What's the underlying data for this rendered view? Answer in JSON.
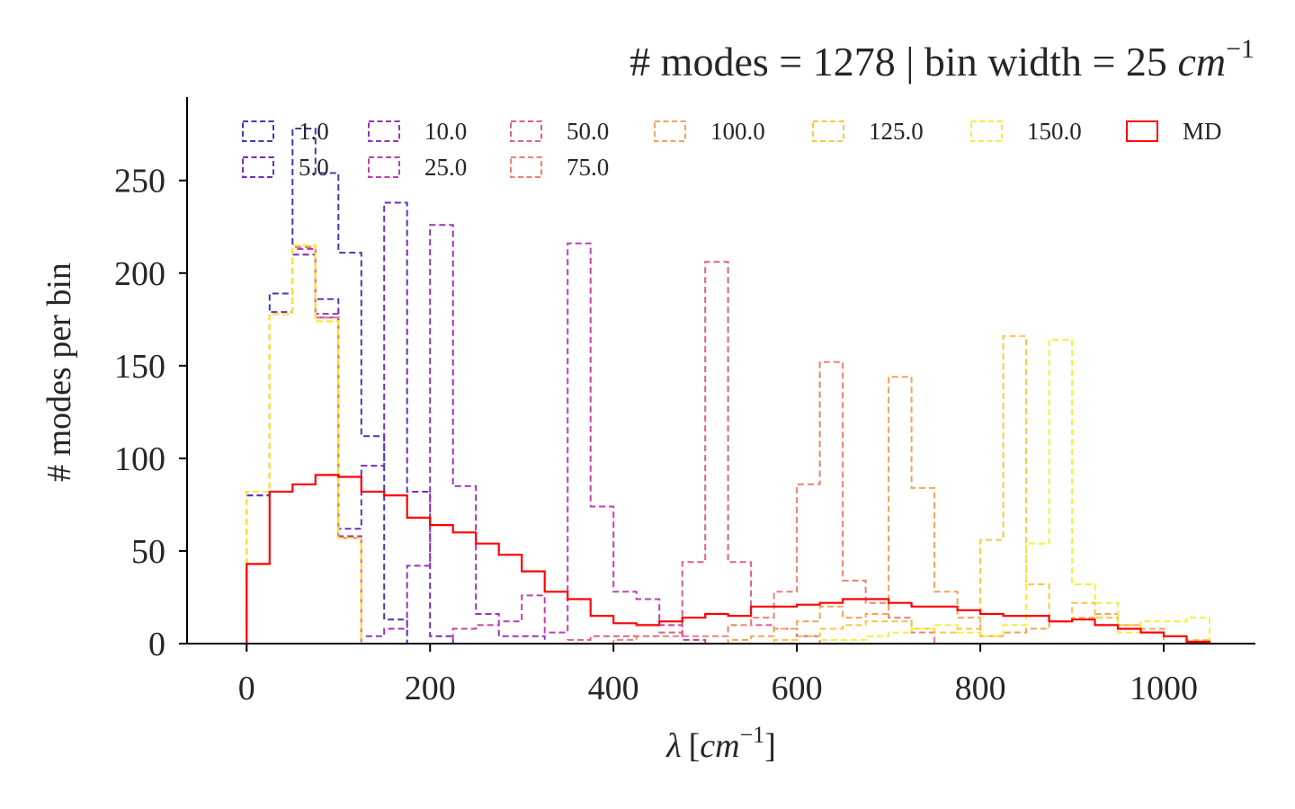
{
  "chart_data": {
    "type": "histogram-step",
    "title_text": "# modes = 1278 | bin width = 25 ",
    "title_unit": "cm",
    "title_exp": "−1",
    "xlabel_symbol": "λ",
    "xlabel_bracket_open": "[",
    "xlabel_unit": "cm",
    "xlabel_exp": "−1",
    "xlabel_bracket_close": "]",
    "ylabel": "# modes per bin",
    "xlim": [
      -65,
      1100
    ],
    "ylim": [
      0,
      295
    ],
    "xticks": [
      0,
      200,
      400,
      600,
      800,
      1000
    ],
    "xtick_labels": [
      "0",
      "200",
      "400",
      "600",
      "800",
      "1000"
    ],
    "yticks": [
      0,
      50,
      100,
      150,
      200,
      250
    ],
    "ytick_labels": [
      "0",
      "50",
      "100",
      "150",
      "200",
      "250"
    ],
    "legend_location": "top",
    "legend_columns": 7,
    "bin_width": 25,
    "bin_edges": [
      0,
      25,
      50,
      75,
      100,
      125,
      150,
      175,
      200,
      225,
      250,
      275,
      300,
      325,
      350,
      375,
      400,
      425,
      450,
      475,
      500,
      525,
      550,
      575,
      600,
      625,
      650,
      675,
      700,
      725,
      750,
      775,
      800,
      825,
      850,
      875,
      900,
      925,
      950,
      975,
      1000,
      1025,
      1050
    ],
    "series": [
      {
        "name": "1.0",
        "color": "#3b3cb4",
        "style": "dashed",
        "values": [
          80,
          189,
          278,
          254,
          211,
          112,
          13,
          0,
          0,
          0,
          0,
          0,
          0,
          0,
          0,
          0,
          0,
          0,
          0,
          0,
          0,
          0,
          0,
          0,
          0,
          0,
          0,
          0,
          0,
          0,
          0,
          0,
          0,
          0,
          0,
          0,
          0,
          0,
          0,
          0,
          0,
          0
        ]
      },
      {
        "name": "5.0",
        "color": "#6a2fc0",
        "style": "dashed",
        "values": [
          80,
          179,
          210,
          186,
          62,
          96,
          238,
          82,
          4,
          0,
          0,
          0,
          0,
          0,
          0,
          0,
          0,
          0,
          0,
          0,
          0,
          0,
          0,
          0,
          0,
          0,
          0,
          0,
          0,
          0,
          0,
          0,
          0,
          0,
          0,
          0,
          0,
          0,
          0,
          0,
          0,
          0
        ]
      },
      {
        "name": "10.0",
        "color": "#9a33b8",
        "style": "dashed",
        "values": [
          82,
          178,
          210,
          178,
          58,
          4,
          8,
          42,
          226,
          85,
          16,
          4,
          4,
          0,
          0,
          0,
          0,
          0,
          0,
          0,
          0,
          0,
          0,
          0,
          0,
          0,
          0,
          0,
          0,
          0,
          0,
          0,
          0,
          0,
          0,
          0,
          0,
          0,
          0,
          0,
          0,
          0
        ]
      },
      {
        "name": "25.0",
        "color": "#c13fae",
        "style": "dashed",
        "values": [
          82,
          178,
          213,
          176,
          57,
          0,
          0,
          0,
          0,
          8,
          10,
          12,
          26,
          6,
          216,
          74,
          28,
          24,
          10,
          2,
          0,
          0,
          0,
          0,
          0,
          0,
          0,
          0,
          0,
          0,
          0,
          0,
          0,
          0,
          0,
          0,
          0,
          0,
          0,
          0,
          0,
          0
        ]
      },
      {
        "name": "50.0",
        "color": "#dc5f8a",
        "style": "dashed",
        "values": [
          82,
          178,
          214,
          176,
          57,
          0,
          0,
          0,
          0,
          0,
          0,
          0,
          0,
          0,
          2,
          4,
          4,
          4,
          6,
          44,
          206,
          44,
          10,
          8,
          4,
          0,
          0,
          0,
          0,
          0,
          0,
          0,
          0,
          0,
          0,
          0,
          0,
          0,
          0,
          0,
          0,
          0
        ]
      },
      {
        "name": "75.0",
        "color": "#ec8070",
        "style": "dashed",
        "values": [
          82,
          178,
          214,
          176,
          57,
          0,
          0,
          0,
          0,
          0,
          0,
          0,
          0,
          0,
          0,
          0,
          2,
          4,
          4,
          4,
          4,
          10,
          14,
          28,
          86,
          152,
          34,
          22,
          14,
          6,
          0,
          0,
          0,
          0,
          0,
          0,
          0,
          0,
          0,
          0,
          0,
          0
        ]
      },
      {
        "name": "100.0",
        "color": "#f4a35a",
        "style": "dashed",
        "values": [
          82,
          178,
          215,
          174,
          57,
          0,
          0,
          0,
          0,
          0,
          0,
          0,
          0,
          0,
          0,
          0,
          0,
          0,
          0,
          0,
          0,
          2,
          4,
          8,
          12,
          20,
          14,
          16,
          144,
          84,
          28,
          14,
          4,
          6,
          8,
          12,
          14,
          16,
          10,
          8,
          0,
          0
        ]
      },
      {
        "name": "125.0",
        "color": "#f9c646",
        "style": "dashed",
        "values": [
          82,
          178,
          215,
          174,
          57,
          0,
          0,
          0,
          0,
          0,
          0,
          0,
          0,
          0,
          0,
          0,
          0,
          0,
          0,
          0,
          0,
          0,
          0,
          2,
          4,
          8,
          10,
          12,
          12,
          8,
          6,
          8,
          56,
          166,
          32,
          12,
          22,
          14,
          10,
          6,
          4,
          2
        ]
      },
      {
        "name": "150.0",
        "color": "#f4ee3c",
        "style": "dashed",
        "values": [
          82,
          178,
          215,
          174,
          57,
          0,
          0,
          0,
          0,
          0,
          0,
          0,
          0,
          0,
          0,
          0,
          0,
          0,
          0,
          0,
          0,
          0,
          0,
          0,
          0,
          2,
          2,
          4,
          6,
          8,
          10,
          6,
          4,
          10,
          54,
          164,
          32,
          22,
          6,
          12,
          12,
          14
        ]
      },
      {
        "name": "MD",
        "color": "#ff0000",
        "style": "solid",
        "values": [
          43,
          82,
          86,
          91,
          90,
          82,
          80,
          68,
          64,
          60,
          54,
          48,
          39,
          28,
          24,
          15,
          11,
          10,
          12,
          14,
          16,
          15,
          20,
          20,
          21,
          22,
          24,
          24,
          22,
          20,
          20,
          18,
          16,
          15,
          15,
          12,
          13,
          10,
          8,
          6,
          4,
          1
        ]
      }
    ]
  }
}
